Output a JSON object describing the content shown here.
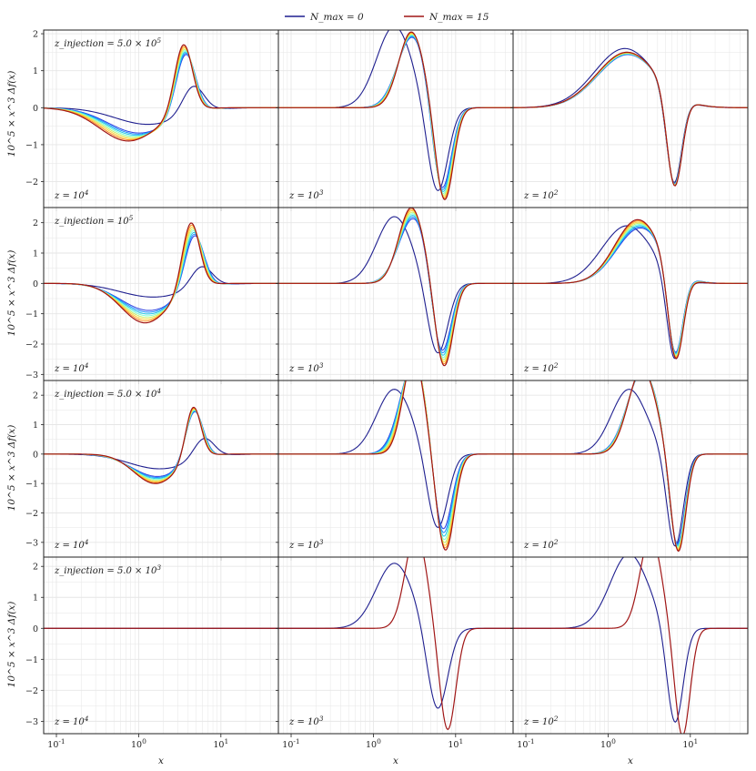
{
  "legend": [
    {
      "label": "N_max = 0",
      "color": "#1f1f8f"
    },
    {
      "label": "N_max = 15",
      "color": "#a01616"
    }
  ],
  "colors": {
    "nmax0": "#1f1f8f",
    "nmax15": "#a01616",
    "intermediate": [
      "#2a3fe0",
      "#1e90ff",
      "#22c7e8",
      "#7fffd4",
      "#c8f26a",
      "#ffd23a",
      "#ff8c1a"
    ],
    "grid": "#e6e6e6",
    "axes": "#222222"
  },
  "chart_data": {
    "type": "line",
    "layout": "4x3 grid of panels, shared x axis per column, shared y axis per row",
    "xscale": "log",
    "xlim": [
      0.07,
      50
    ],
    "x_tick_labels": [
      "10^-1",
      "10^0",
      "10^1"
    ],
    "xlabel": "x",
    "ylabel": "10^5 × x^3 Δf(x)",
    "column_labels": [
      "z = 10^4",
      "z = 10^3",
      "z = 10^2"
    ],
    "rows": [
      {
        "injection_label": "z_injection = 5.0 × 10^5",
        "ylim": [
          -2.7,
          2.1
        ],
        "yticks": [
          -2,
          -1,
          0,
          1,
          2
        ],
        "panels": [
          {
            "nmax0": {
              "A": 0.75,
              "m": 4.6,
              "s": 0.42,
              "L": -0.45,
              "lm": 1.3,
              "ls": 1.3
            },
            "nmax15": {
              "A": 1.85,
              "m": 3.5,
              "s": 0.35,
              "L": -0.9,
              "lm": 0.75,
              "ls": 1.15
            },
            "spread": 0.12
          },
          {
            "nmax0": {
              "A": 2.2,
              "m": 1.8,
              "s": 0.7,
              "L": -2.35,
              "lm": 6.0,
              "ls": 0.4
            },
            "nmax15": {
              "A": 2.05,
              "m": 2.9,
              "s": 0.5,
              "L": -2.55,
              "lm": 7.3,
              "ls": 0.35
            },
            "spread": 0.07
          },
          {
            "nmax0": {
              "A": 1.6,
              "m": 1.6,
              "s": 1.2,
              "L": -2.45,
              "lm": 6.3,
              "ls": 0.3
            },
            "nmax15": {
              "A": 1.5,
              "m": 1.7,
              "s": 1.2,
              "L": -2.55,
              "lm": 6.4,
              "ls": 0.3
            },
            "spread": 0.05
          }
        ]
      },
      {
        "injection_label": "z_injection = 10^5",
        "ylim": [
          -3.2,
          2.5
        ],
        "yticks": [
          -3,
          -2,
          -1,
          0,
          1,
          2
        ],
        "panels": [
          {
            "nmax0": {
              "A": 0.7,
              "m": 5.8,
              "s": 0.42,
              "L": -0.45,
              "lm": 1.5,
              "ls": 1.3
            },
            "nmax15": {
              "A": 2.2,
              "m": 4.3,
              "s": 0.34,
              "L": -1.3,
              "lm": 1.2,
              "ls": 0.95
            },
            "spread": 0.2
          },
          {
            "nmax0": {
              "A": 2.2,
              "m": 1.8,
              "s": 0.7,
              "L": -2.4,
              "lm": 6.0,
              "ls": 0.4
            },
            "nmax15": {
              "A": 2.5,
              "m": 2.9,
              "s": 0.5,
              "L": -2.8,
              "lm": 7.2,
              "ls": 0.35
            },
            "spread": 0.15
          },
          {
            "nmax0": {
              "A": 1.9,
              "m": 1.7,
              "s": 1.0,
              "L": -2.8,
              "lm": 6.4,
              "ls": 0.3
            },
            "nmax15": {
              "A": 2.1,
              "m": 2.3,
              "s": 0.9,
              "L": -3.0,
              "lm": 6.6,
              "ls": 0.3
            },
            "spread": 0.15
          }
        ]
      },
      {
        "injection_label": "z_injection = 5.0 × 10^4",
        "ylim": [
          -3.5,
          2.5
        ],
        "yticks": [
          -3,
          -2,
          -1,
          0,
          1,
          2
        ],
        "panels": [
          {
            "nmax0": {
              "A": 0.7,
              "m": 6.2,
              "s": 0.4,
              "L": -0.5,
              "lm": 1.8,
              "ls": 1.2
            },
            "nmax15": {
              "A": 1.8,
              "m": 4.6,
              "s": 0.3,
              "L": -1.0,
              "lm": 1.6,
              "ls": 0.85
            },
            "spread": 0.06
          },
          {
            "nmax0": {
              "A": 2.2,
              "m": 1.8,
              "s": 0.7,
              "L": -2.6,
              "lm": 6.0,
              "ls": 0.4
            },
            "nmax15": {
              "A": 3.3,
              "m": 3.1,
              "s": 0.42,
              "L": -3.3,
              "lm": 7.5,
              "ls": 0.35
            },
            "spread": 0.04
          },
          {
            "nmax0": {
              "A": 2.2,
              "m": 1.8,
              "s": 0.7,
              "L": -3.2,
              "lm": 6.5,
              "ls": 0.32
            },
            "nmax15": {
              "A": 2.9,
              "m": 2.6,
              "s": 0.55,
              "L": -3.4,
              "lm": 7.1,
              "ls": 0.3
            },
            "spread": 0.04
          }
        ]
      },
      {
        "injection_label": "z_injection = 5.0 × 10^3",
        "ylim": [
          -3.4,
          2.3
        ],
        "yticks": [
          -3,
          -2,
          -1,
          0,
          1,
          2
        ],
        "panels": [
          {
            "nmax0": {
              "A": 0,
              "m": 3,
              "s": 0.4,
              "L": 0,
              "lm": 1,
              "ls": 1
            },
            "nmax15": {
              "A": 0,
              "m": 3,
              "s": 0.4,
              "L": 0,
              "lm": 1,
              "ls": 1
            },
            "spread": 0.0
          },
          {
            "nmax0": {
              "A": 2.1,
              "m": 1.8,
              "s": 0.72,
              "L": -2.7,
              "lm": 6.0,
              "ls": 0.4
            },
            "nmax15": {
              "A": 3.1,
              "m": 3.3,
              "s": 0.42,
              "L": -3.3,
              "lm": 8.0,
              "ls": 0.32
            },
            "spread": 0.0
          },
          {
            "nmax0": {
              "A": 2.4,
              "m": 1.8,
              "s": 0.75,
              "L": -3.15,
              "lm": 6.5,
              "ls": 0.32
            },
            "nmax15": {
              "A": 3.0,
              "m": 3.3,
              "s": 0.42,
              "L": -3.5,
              "lm": 8.0,
              "ls": 0.3
            },
            "spread": 0.0
          }
        ]
      }
    ]
  }
}
